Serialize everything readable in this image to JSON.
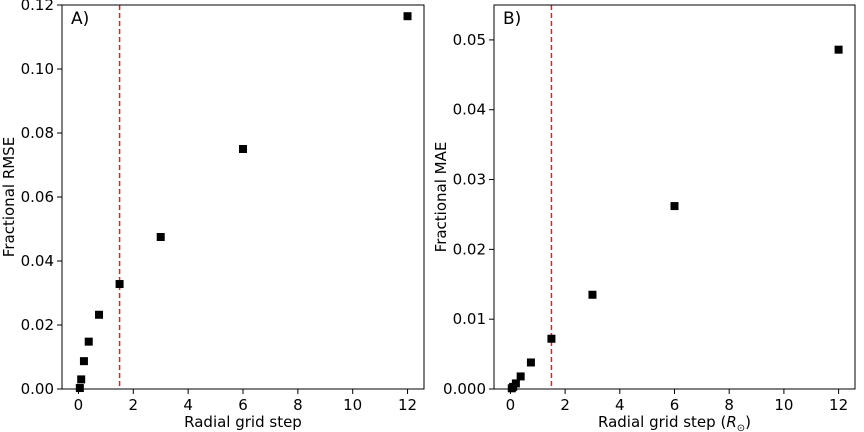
{
  "chart_data": [
    {
      "type": "scatter",
      "panel_label": "A)",
      "title": "",
      "xlabel": "Radial grid step",
      "xlabel_unit": "",
      "ylabel": "Fractional RMSE",
      "xlim": [
        -0.6,
        12.6
      ],
      "ylim": [
        0,
        0.12
      ],
      "xticks": [
        0,
        2,
        4,
        6,
        8,
        10,
        12
      ],
      "yticks": [
        0.0,
        0.02,
        0.04,
        0.06,
        0.08,
        0.1,
        0.12
      ],
      "xtick_labels": [
        "0",
        "2",
        "4",
        "6",
        "8",
        "10",
        "12"
      ],
      "ytick_labels": [
        "0.00",
        "0.02",
        "0.04",
        "0.06",
        "0.08",
        "0.10",
        "0.12"
      ],
      "grid": false,
      "marker": "square",
      "marker_color": "#000000",
      "reference_line": {
        "x": 1.5,
        "color": "#d62728",
        "style": "dashed"
      },
      "x": [
        0.05,
        0.1,
        0.2,
        0.375,
        0.75,
        1.5,
        3,
        6,
        12
      ],
      "y": [
        0.0003,
        0.003,
        0.0087,
        0.0148,
        0.0232,
        0.0328,
        0.0475,
        0.075,
        0.1165
      ]
    },
    {
      "type": "scatter",
      "panel_label": "B)",
      "title": "",
      "xlabel": "Radial grid step (",
      "xlabel_unit": "R",
      "xlabel_subscript": "⊙",
      "xlabel_close": ")",
      "ylabel": "Fractional MAE",
      "xlim": [
        -0.6,
        12.6
      ],
      "ylim": [
        0,
        0.055
      ],
      "xticks": [
        0,
        2,
        4,
        6,
        8,
        10,
        12
      ],
      "yticks": [
        0.0,
        0.01,
        0.02,
        0.03,
        0.04,
        0.05
      ],
      "xtick_labels": [
        "0",
        "2",
        "4",
        "6",
        "8",
        "10",
        "12"
      ],
      "ytick_labels": [
        "0.000",
        "0.01",
        "0.02",
        "0.03",
        "0.04",
        "0.05"
      ],
      "grid": false,
      "marker": "square",
      "marker_color": "#000000",
      "reference_line": {
        "x": 1.5,
        "color": "#d62728",
        "style": "dashed"
      },
      "x": [
        0.05,
        0.1,
        0.2,
        0.375,
        0.75,
        1.5,
        3,
        6,
        12
      ],
      "y": [
        0.0001,
        0.0003,
        0.0008,
        0.0018,
        0.0038,
        0.0072,
        0.0135,
        0.0262,
        0.0486
      ]
    }
  ]
}
